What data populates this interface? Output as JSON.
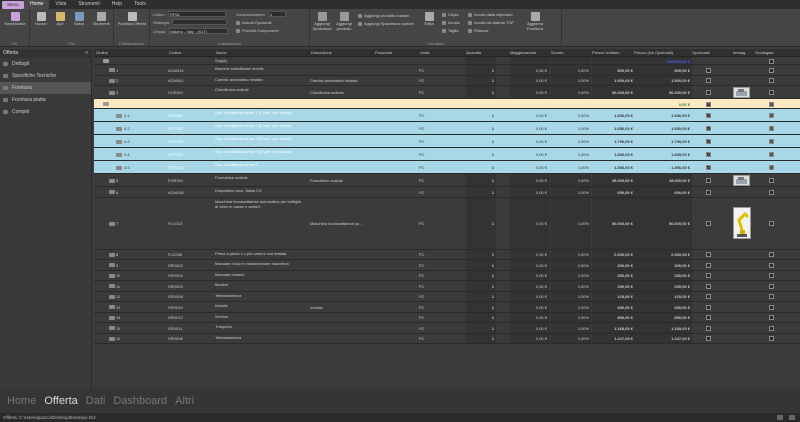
{
  "menubar": {
    "app_label": "Menu",
    "items": [
      "Home",
      "Vista",
      "Strumenti",
      "Help",
      "Tools"
    ],
    "active": "Home"
  },
  "ribbon": {
    "handshake": "HandShake",
    "file_group": "File",
    "nuovo": "Nuovo",
    "apri": "Apri",
    "salva": "Salva",
    "strumenti": "Strumenti",
    "pubblica": "Pubblica Offerta",
    "pubblicazione_group": "Pubblicazione",
    "listino_label": "Listino",
    "listino_value": "FIPAL",
    "strategia_label": "Strategia",
    "strategia_value": "",
    "lingua_label": "Lingua",
    "lingua_value": "Italiano - Italy - (it-IT)",
    "arrotondamento_label": "Arrotondamento",
    "arrotondamento_value": "0",
    "includi_opzionali": "Includi Opzionali",
    "prodotti_componenti": "Prodotti Componenti",
    "impostazioni_group": "Impostazioni",
    "aggiungi_spaziatura": "Aggiungi Spaziatura",
    "aggiungi_prodotto": "Aggiungi prodotto",
    "aggiungi_prodotto_custom": "Aggiungi prodotto custom",
    "aggiungi_spaziatura_custom": "Aggiungi Spaziatura custom",
    "edita": "Edita",
    "copia": "Copia",
    "incolla": "Incolla",
    "taglia": "Taglia",
    "incolla_clipboard": "Incolla dalla clipboard",
    "incolla_distinta": "Incolla da distinta TOP",
    "rimuovi": "Rimuovi",
    "aggiorna_fornitura": "Aggiorna Fornitura",
    "fornitura_group": "Fornitura"
  },
  "sidebar": {
    "title": "Offerta",
    "collapse": "«",
    "items": [
      "Dettagli",
      "Specifiche Tecniche",
      "Fornitura",
      "Fornitura piatta",
      "Compiti"
    ],
    "selected": "Fornitura"
  },
  "columns": [
    "Ordine",
    "Codice",
    "Nome",
    "Descrizione",
    "Posizione",
    "Unità",
    "Quantità",
    "Maggiorazione",
    "Sconto",
    "Prezzo Unitario",
    "Prezzo (No Opzionali)",
    "Opzionale",
    "Immag.",
    "Scollegato"
  ],
  "rows": [
    {
      "ord": "",
      "cod": "",
      "nome": "Supply",
      "desc": "",
      "un": "",
      "qty": "",
      "mag": "",
      "sc": "",
      "pu": "",
      "pno": "165.600,00 €",
      "opt": false,
      "type": "root"
    },
    {
      "ord": "1",
      "cod": "ACM014",
      "nome": "Barriera antirollbase mobile",
      "desc": "",
      "un": "PC",
      "qty": "1",
      "mag": "0,00 €",
      "sc": "0,00%",
      "pu": "800,00 €",
      "pno": "800,00 €",
      "opt": false,
      "type": "normal"
    },
    {
      "ord": "2",
      "cod": "ACM001",
      "nome": "Cambio automatico testata",
      "desc": "Cambio automatico testata",
      "un": "PC",
      "qty": "1",
      "mag": "0,00 €",
      "sc": "0,00%",
      "pu": "1.500,00 €",
      "pno": "1.500,00 €",
      "opt": false,
      "type": "normal"
    },
    {
      "ord": "3",
      "cod": "CHS001",
      "nome": "Chiudibrica scatole",
      "desc": "Chiudibrica scatole",
      "un": "PC",
      "qty": "1",
      "mag": "0,00 €",
      "sc": "0,00%",
      "pu": "36.000,00 €",
      "pno": "36.000,00 €",
      "opt": false,
      "type": "normal",
      "img": "machine"
    },
    {
      "ord": "",
      "cod": "",
      "nome": "",
      "desc": "",
      "un": "",
      "qty": "",
      "mag": "",
      "sc": "",
      "pu": "",
      "pno": "0,00 €",
      "opt": true,
      "type": "group"
    },
    {
      "ord": "4.1",
      "cod": "OPT001",
      "nome": "Opz. Avvitatore carton 1 (2 vari. con secca)",
      "desc": "",
      "un": "PC",
      "qty": "1",
      "mag": "0,00 €",
      "sc": "0,00%",
      "pu": "1.536,00 €",
      "pno": "1.536,00 €",
      "opt": true,
      "type": "blue"
    },
    {
      "ord": "4.2",
      "cod": "OPT002",
      "nome": "Opz. Avvitatore carton 2 (2 vari. con secca)",
      "desc": "",
      "un": "PC",
      "qty": "1",
      "mag": "0,00 €",
      "sc": "0,00%",
      "pu": "1.680,00 €",
      "pno": "1.680,00 €",
      "opt": true,
      "type": "blue"
    },
    {
      "ord": "4.3",
      "cod": "OPT003",
      "nome": "Opz. Avvitatore carton 3 (2 vari. con secca)",
      "desc": "",
      "un": "PC",
      "qty": "1",
      "mag": "0,00 €",
      "sc": "0,00%",
      "pu": "1.790,00 €",
      "pno": "1.790,00 €",
      "opt": true,
      "type": "blue"
    },
    {
      "ord": "4.4",
      "cod": "OPT004",
      "nome": "Opz. Avvitatore carton 4 (2 vari. con secca)",
      "desc": "",
      "un": "PC",
      "qty": "1",
      "mag": "0,00 €",
      "sc": "0,00%",
      "pu": "1.689,00 €",
      "pno": "1.689,00 €",
      "opt": true,
      "type": "blue"
    },
    {
      "ord": "4.5",
      "cod": "OPT005",
      "nome": "Opz. Avvitatore carton 5",
      "desc": "",
      "un": "PC",
      "qty": "1",
      "mag": "0,00 €",
      "sc": "0,00%",
      "pu": "1.356,00 €",
      "pno": "1.356,00 €",
      "opt": true,
      "type": "blue"
    },
    {
      "ord": "5",
      "cod": "FOR001",
      "nome": "Formatrice scatole",
      "desc": "Formatrice scatole",
      "un": "PC",
      "qty": "1",
      "mag": "0,00 €",
      "sc": "0,00%",
      "pu": "45.000,00 €",
      "pno": "45.000,00 €",
      "opt": false,
      "type": "normal",
      "img": "machine"
    },
    {
      "ord": "6",
      "cod": "ACM018",
      "nome": "Dispositivo recu. flalda CS",
      "desc": "",
      "un": "PC",
      "qty": "1",
      "mag": "0,00 €",
      "sc": "0,00%",
      "pu": "690,00 €",
      "pno": "690,00 €",
      "opt": false,
      "type": "normal"
    },
    {
      "ord": "7",
      "cod": "FLC013",
      "nome": "Macchina incassettatrice automatica per bottiglie di vetro in casse o cartoni",
      "desc": "Macchina incassettatrice au...",
      "un": "PC",
      "qty": "1",
      "mag": "0,00 €",
      "sc": "0,00%",
      "pu": "50.000,00 €",
      "pno": "50.000,00 €",
      "opt": false,
      "type": "tall",
      "img": "robot"
    },
    {
      "ord": "8",
      "cod": "FLC006",
      "nome": "Presa a pinza 1 x più cartoni con testata",
      "desc": "",
      "un": "PC",
      "qty": "1",
      "mag": "0,00 €",
      "sc": "0,00%",
      "pu": "2.500,00 €",
      "pno": "2.500,00 €",
      "opt": false,
      "type": "normal"
    },
    {
      "ord": "9",
      "cod": "SRV002",
      "nome": "Manuale d'uso e manutenzione macchina",
      "desc": "",
      "un": "PC",
      "qty": "1",
      "mag": "0,00 €",
      "sc": "0,00%",
      "pu": "300,00 €",
      "pno": "300,00 €",
      "opt": false,
      "type": "normal"
    },
    {
      "ord": "10",
      "cod": "SRV004",
      "nome": "Manuale ricambi",
      "desc": "",
      "un": "PC",
      "qty": "1",
      "mag": "0,00 €",
      "sc": "0,00%",
      "pu": "250,00 €",
      "pno": "250,00 €",
      "opt": false,
      "type": "normal"
    },
    {
      "ord": "11",
      "cod": "SRV003",
      "nome": "Modem",
      "desc": "",
      "un": "PC",
      "qty": "1",
      "mag": "0,00 €",
      "sc": "0,00%",
      "pu": "250,00 €",
      "pno": "250,00 €",
      "opt": false,
      "type": "normal"
    },
    {
      "ord": "12",
      "cod": "SRV008",
      "nome": "Teleassistenza",
      "desc": "",
      "un": "PC",
      "qty": "1",
      "mag": "0,00 €",
      "sc": "0,00%",
      "pu": "125,00 €",
      "pno": "125,00 €",
      "opt": false,
      "type": "normal"
    },
    {
      "ord": "13",
      "cod": "SRV010",
      "nome": "Imballo",
      "desc": "Imballo",
      "un": "PC",
      "qty": "1",
      "mag": "0,00 €",
      "sc": "0,00%",
      "pu": "650,00 €",
      "pno": "650,00 €",
      "opt": false,
      "type": "normal"
    },
    {
      "ord": "14",
      "cod": "SRV012",
      "nome": "Service",
      "desc": "",
      "un": "PC",
      "qty": "1",
      "mag": "0,00 €",
      "sc": "0,00%",
      "pu": "850,00 €",
      "pno": "850,00 €",
      "opt": false,
      "type": "normal"
    },
    {
      "ord": "15",
      "cod": "SRV011",
      "nome": "Trasporto",
      "desc": "",
      "un": "PC",
      "qty": "1",
      "mag": "0,00 €",
      "sc": "0,00%",
      "pu": "1.168,00 €",
      "pno": "1.168,00 €",
      "opt": false,
      "type": "normal"
    },
    {
      "ord": "16",
      "cod": "SRV006",
      "nome": "Teleassistenza",
      "desc": "",
      "un": "PC",
      "qty": "1",
      "mag": "0,00 €",
      "sc": "0,00%",
      "pu": "1.247,00 €",
      "pno": "1.247,00 €",
      "opt": false,
      "type": "normal"
    }
  ],
  "bottomnav": [
    "Home",
    "Offerta",
    "Dati",
    "Dashboard",
    "Altri"
  ],
  "bottomnav_active": "Offerta",
  "status": "Offerta: C:\\Users\\pazzoi\\Desktop\\Esempio.hsz",
  "colors": {
    "accent_blue": "#a8d8e8",
    "group_row": "#fde9c4",
    "link_blue": "#3f5fff",
    "ribbon_bg": "#454545"
  }
}
